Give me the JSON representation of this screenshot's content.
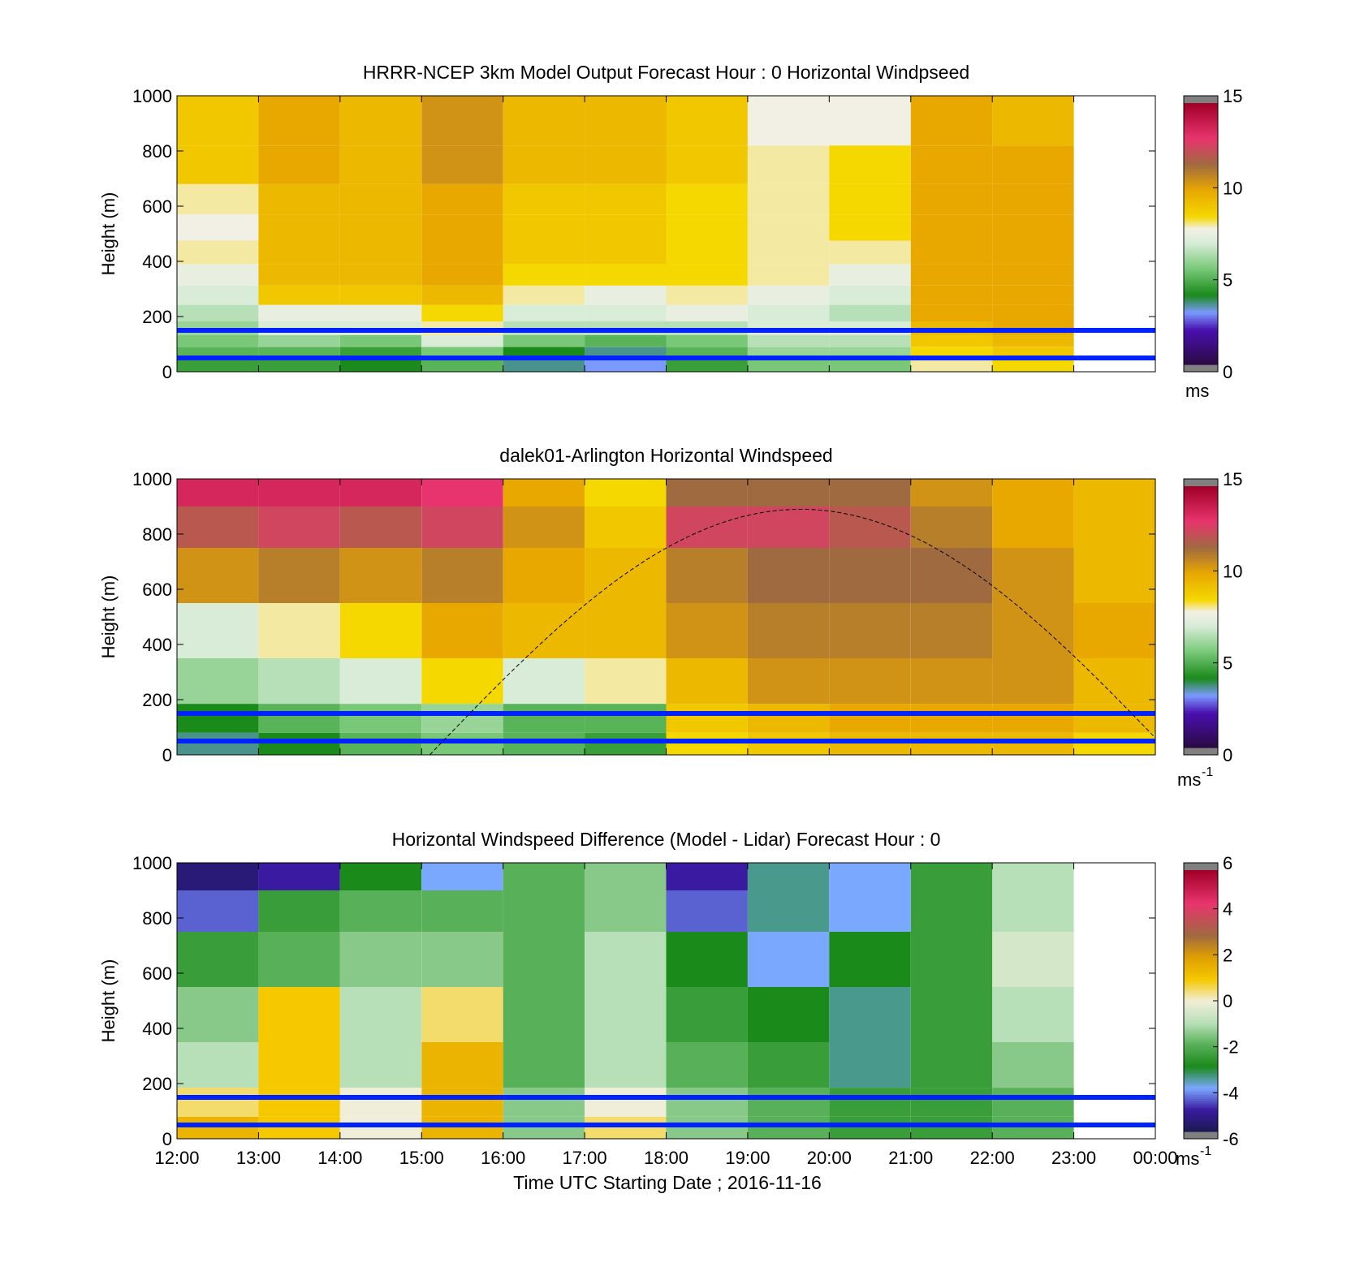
{
  "colors": {
    "line_blue": "#0022ff",
    "speed_colormap": [
      "#e6e6e6",
      "#2a0040",
      "#4a10b0",
      "#7a9aff",
      "#1a8a1a",
      "#a8dca8",
      "#f0eed8",
      "#f5cc00",
      "#e8a000",
      "#a86030",
      "#e8306a",
      "#a80028"
    ],
    "diff_colormap": [
      "#222255",
      "#3a1aa0",
      "#7aa8ff",
      "#1a8a1a",
      "#a8dca8",
      "#f0eed8",
      "#f5c800",
      "#a86030",
      "#e8306a"
    ]
  },
  "chart_data": [
    {
      "type": "heatmap",
      "title": "HRRR-NCEP 3km Model Output   Forecast Hour : 0 Horizontal Windpseed",
      "ylabel": "Height (m)",
      "xlabel": "",
      "ylim": [
        0,
        1000
      ],
      "yticks": [
        "0",
        "200",
        "400",
        "600",
        "800",
        "1000"
      ],
      "xticks": [],
      "colorbar": {
        "ticks": [
          "0",
          "5",
          "10",
          "15"
        ],
        "range": [
          0,
          15
        ],
        "unit": "ms",
        "unit_sup": ""
      },
      "hlines_m": [
        50,
        150
      ],
      "columns_hour_start": [
        12,
        13,
        14,
        15,
        16,
        17,
        18,
        19,
        20,
        21,
        22
      ],
      "heights_m": [
        30,
        70,
        110,
        155,
        210,
        275,
        350,
        430,
        520,
        620,
        740,
        900
      ],
      "values": [
        [
          4.5,
          4.5,
          4.0,
          5.0,
          3.5,
          3.0,
          4.5,
          5.5,
          5.5,
          8.0,
          8.5
        ],
        [
          5.0,
          5.0,
          4.5,
          5.5,
          4.0,
          3.5,
          5.0,
          6.0,
          6.0,
          8.5,
          9.0
        ],
        [
          5.5,
          6.0,
          5.5,
          7.0,
          5.5,
          5.0,
          5.5,
          6.5,
          6.5,
          9.0,
          9.5
        ],
        [
          6.0,
          7.0,
          7.0,
          8.0,
          6.5,
          6.5,
          6.5,
          7.0,
          7.0,
          9.5,
          10.0
        ],
        [
          6.5,
          7.5,
          7.5,
          8.5,
          7.0,
          7.0,
          7.5,
          7.0,
          6.5,
          10.0,
          10.0
        ],
        [
          7.0,
          9.0,
          9.0,
          9.5,
          8.0,
          7.5,
          8.0,
          7.5,
          7.0,
          10.0,
          10.0
        ],
        [
          7.5,
          9.5,
          9.5,
          10.0,
          8.5,
          8.5,
          8.5,
          8.0,
          7.5,
          10.0,
          10.0
        ],
        [
          8.0,
          9.5,
          9.5,
          10.0,
          9.0,
          9.0,
          8.5,
          8.0,
          8.0,
          10.0,
          10.0
        ],
        [
          7.8,
          9.5,
          9.5,
          10.0,
          9.0,
          9.0,
          8.5,
          8.0,
          8.5,
          10.0,
          10.0
        ],
        [
          8.0,
          9.5,
          9.5,
          10.0,
          9.0,
          9.0,
          8.5,
          8.0,
          8.5,
          10.0,
          10.0
        ],
        [
          9.0,
          10.0,
          9.5,
          10.5,
          9.5,
          9.5,
          9.0,
          8.0,
          8.5,
          10.0,
          10.0
        ],
        [
          9.0,
          10.0,
          9.5,
          10.5,
          9.5,
          9.5,
          9.0,
          7.8,
          7.8,
          10.0,
          9.5
        ]
      ]
    },
    {
      "type": "heatmap",
      "title": "dalek01-Arlington  Horizontal Windspeed",
      "ylabel": "Height (m)",
      "xlabel": "",
      "ylim": [
        0,
        1000
      ],
      "yticks": [
        "0",
        "200",
        "400",
        "600",
        "800",
        "1000"
      ],
      "xticks": [],
      "colorbar": {
        "ticks": [
          "0",
          "5",
          "10",
          "15"
        ],
        "range": [
          0,
          15
        ],
        "unit": "ms",
        "unit_sup": "-1"
      },
      "hlines_m": [
        50,
        150
      ],
      "columns_hour_start": [
        12,
        13,
        14,
        15,
        16,
        17,
        18,
        19,
        20,
        21,
        22,
        23
      ],
      "heights_m": [
        40,
        120,
        250,
        450,
        650,
        850,
        950
      ],
      "values": [
        [
          3.5,
          4.0,
          5.0,
          5.5,
          5.0,
          4.5,
          8.5,
          9.0,
          9.5,
          9.5,
          9.5,
          8.5
        ],
        [
          4.0,
          5.0,
          5.5,
          6.0,
          5.0,
          5.0,
          9.0,
          9.5,
          10.0,
          10.0,
          10.0,
          9.5
        ],
        [
          6.0,
          6.5,
          7.0,
          8.5,
          7.0,
          8.0,
          9.5,
          10.5,
          10.5,
          10.5,
          10.5,
          9.5
        ],
        [
          7.0,
          8.0,
          8.5,
          10.0,
          9.5,
          9.5,
          10.5,
          11.0,
          11.0,
          11.0,
          10.5,
          10.0
        ],
        [
          10.5,
          11.0,
          10.5,
          11.0,
          10.0,
          9.5,
          11.0,
          11.5,
          11.5,
          11.5,
          10.5,
          9.5
        ],
        [
          12.0,
          12.5,
          12.0,
          12.5,
          10.5,
          9.0,
          12.5,
          12.5,
          12.0,
          11.0,
          10.0,
          9.5
        ],
        [
          13.5,
          13.5,
          13.5,
          13.0,
          10.0,
          8.5,
          11.5,
          11.5,
          11.5,
          10.5,
          10.0,
          9.5
        ]
      ]
    },
    {
      "type": "heatmap",
      "title": "Horizontal Windspeed Difference (Model - Lidar) Forecast Hour : 0",
      "ylabel": "Height (m)",
      "xlabel": "Time UTC  Starting Date ; 2016-11-16",
      "ylim": [
        0,
        1000
      ],
      "yticks": [
        "0",
        "200",
        "400",
        "600",
        "800",
        "1000"
      ],
      "xticks": [
        "12:00",
        "13:00",
        "14:00",
        "15:00",
        "16:00",
        "17:00",
        "18:00",
        "19:00",
        "20:00",
        "21:00",
        "22:00",
        "23:00",
        "00:00"
      ],
      "colorbar": {
        "ticks": [
          "-6",
          "-4",
          "-2",
          "0",
          "2",
          "4",
          "6"
        ],
        "range": [
          -6,
          6
        ],
        "unit": "ms",
        "unit_sup": "-1"
      },
      "hlines_m": [
        50,
        150
      ],
      "columns_hour_start": [
        12,
        13,
        14,
        15,
        16,
        17,
        18,
        19,
        20,
        21,
        22
      ],
      "heights_m": [
        40,
        120,
        250,
        450,
        650,
        850,
        950
      ],
      "values": [
        [
          1.5,
          1.0,
          0.0,
          1.5,
          -1.5,
          0.5,
          -1.5,
          -2.0,
          -2.5,
          -2.5,
          -2.0
        ],
        [
          0.5,
          1.0,
          0.0,
          1.5,
          -1.5,
          0.0,
          -1.5,
          -2.0,
          -2.5,
          -2.5,
          -2.0
        ],
        [
          -1.0,
          1.0,
          -1.0,
          1.5,
          -2.0,
          -1.0,
          -2.0,
          -2.5,
          -3.5,
          -2.5,
          -1.5
        ],
        [
          -1.5,
          1.0,
          -1.0,
          0.5,
          -2.0,
          -1.0,
          -2.5,
          -3.0,
          -3.5,
          -2.5,
          -1.0
        ],
        [
          -2.5,
          -2.0,
          -1.5,
          -1.5,
          -2.0,
          -1.0,
          -3.0,
          -4.0,
          -3.0,
          -2.5,
          -0.5
        ],
        [
          -4.5,
          -2.5,
          -2.0,
          -2.0,
          -2.0,
          -1.5,
          -4.5,
          -3.5,
          -4.0,
          -2.5,
          -1.0
        ],
        [
          -5.5,
          -5.0,
          -3.0,
          -4.0,
          -2.0,
          -1.5,
          -5.0,
          -3.5,
          -4.0,
          -2.5,
          -1.0
        ]
      ]
    }
  ]
}
